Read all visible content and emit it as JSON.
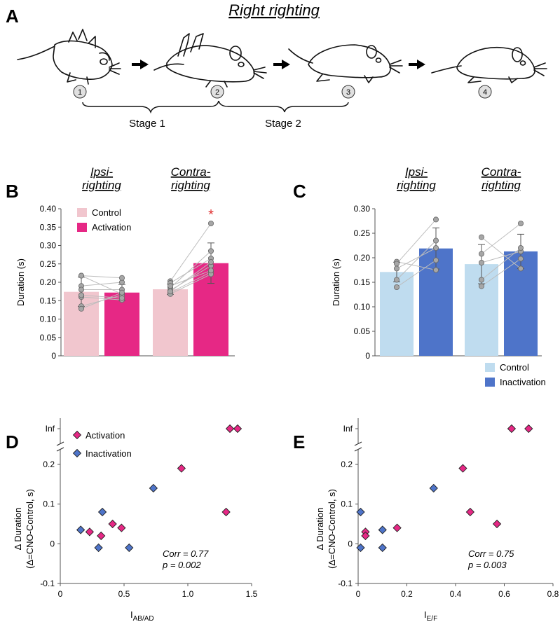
{
  "panel_labels": {
    "a": "A",
    "b": "B",
    "c": "C",
    "d": "D",
    "e": "E"
  },
  "panel_a": {
    "title": "Right righting",
    "steps": [
      "1",
      "2",
      "3",
      "4"
    ],
    "stage1": "Stage 1",
    "stage2": "Stage 2"
  },
  "colors": {
    "activation_light": "#f1c6ce",
    "activation_dark": "#e62885",
    "inactivation_light": "#bfdcef",
    "inactivation_dark": "#4e74c9",
    "dot": "#a6a6a6",
    "star": "#e03030"
  },
  "chart_data": [
    {
      "id": "B",
      "type": "bar",
      "group_headers": [
        [
          "Ipsi-",
          "righting"
        ],
        [
          "Contra-",
          "righting"
        ]
      ],
      "legend": [
        "Control",
        "Activation"
      ],
      "ylabel": "Duration (s)",
      "ylim": [
        0,
        0.4
      ],
      "yticks": [
        "0",
        "0.05",
        "0.10",
        "0.15",
        "0.20",
        "0.25",
        "0.30",
        "0.35",
        "0.40"
      ],
      "bars": [
        {
          "group": 0,
          "condition": "Control",
          "value": 0.174,
          "err": 0.04
        },
        {
          "group": 0,
          "condition": "Activation",
          "value": 0.172,
          "err": 0.022
        },
        {
          "group": 1,
          "condition": "Control",
          "value": 0.181,
          "err": 0.014
        },
        {
          "group": 1,
          "condition": "Activation",
          "value": 0.252,
          "err": 0.055
        }
      ],
      "pairs": [
        [
          [
            0.218,
            0.168
          ],
          [
            0.19,
            0.2
          ],
          [
            0.18,
            0.18
          ],
          [
            0.16,
            0.152
          ],
          [
            0.135,
            0.165
          ],
          [
            0.128,
            0.172
          ],
          [
            0.218,
            0.212
          ],
          [
            0.165,
            0.157
          ]
        ],
        [
          [
            0.203,
            0.36
          ],
          [
            0.198,
            0.265
          ],
          [
            0.185,
            0.285
          ],
          [
            0.178,
            0.245
          ],
          [
            0.172,
            0.228
          ],
          [
            0.168,
            0.222
          ],
          [
            0.175,
            0.255
          ],
          [
            0.19,
            0.232
          ]
        ]
      ],
      "significance": [
        {
          "group": 1,
          "label": "*"
        }
      ]
    },
    {
      "id": "C",
      "type": "bar",
      "group_headers": [
        [
          "Ipsi-",
          "righting"
        ],
        [
          "Contra-",
          "righting"
        ]
      ],
      "legend": [
        "Control",
        "Inactivation"
      ],
      "ylabel": "Duration (s)",
      "ylim": [
        0,
        0.3
      ],
      "yticks": [
        "0",
        "0.05",
        "0.10",
        "0.15",
        "0.20",
        "0.25",
        "0.30"
      ],
      "bars": [
        {
          "group": 0,
          "condition": "Control",
          "value": 0.171,
          "err": 0.02
        },
        {
          "group": 0,
          "condition": "Inactivation",
          "value": 0.219,
          "err": 0.042
        },
        {
          "group": 1,
          "condition": "Control",
          "value": 0.187,
          "err": 0.04
        },
        {
          "group": 1,
          "condition": "Inactivation",
          "value": 0.213,
          "err": 0.035
        }
      ],
      "pairs": [
        [
          [
            0.192,
            0.175
          ],
          [
            0.188,
            0.278
          ],
          [
            0.178,
            0.22
          ],
          [
            0.155,
            0.235
          ],
          [
            0.14,
            0.195
          ]
        ],
        [
          [
            0.242,
            0.178
          ],
          [
            0.208,
            0.27
          ],
          [
            0.19,
            0.213
          ],
          [
            0.155,
            0.22
          ],
          [
            0.142,
            0.198
          ]
        ]
      ]
    },
    {
      "id": "D",
      "type": "scatter",
      "xlabel_main": "I",
      "xlabel_sub": "AB/AD",
      "ylabel": "Δ Duration",
      "ylabel2": "(Δ=CNO-Control, s)",
      "xlim": [
        0,
        1.5
      ],
      "ylim": [
        -0.1,
        0.2
      ],
      "xticks": [
        "0",
        "0.5",
        "1.0",
        "1.5"
      ],
      "yticks": [
        "-0.1",
        "0",
        "0.1",
        "0.2",
        "Inf"
      ],
      "legend": [
        "Activation",
        "Inactivation"
      ],
      "series": [
        {
          "name": "Activation",
          "x": [
            0.23,
            0.32,
            0.41,
            0.48,
            0.95,
            1.3
          ],
          "y": [
            0.03,
            0.02,
            0.05,
            0.04,
            0.19,
            0.08
          ]
        },
        {
          "name": "Inactivation",
          "x": [
            0.16,
            0.3,
            0.33,
            0.54,
            0.73
          ],
          "y": [
            0.035,
            -0.01,
            0.08,
            -0.01,
            0.14
          ]
        }
      ],
      "inf_points": [
        {
          "name": "Activation",
          "x": [
            1.33,
            1.39
          ]
        }
      ],
      "annotation": [
        "Corr = 0.77",
        "p = 0.002"
      ]
    },
    {
      "id": "E",
      "type": "scatter",
      "xlabel_main": "I",
      "xlabel_sub": "E/F",
      "ylabel": "Δ Duration",
      "ylabel2": "(Δ=CNO-Control, s)",
      "xlim": [
        0,
        0.8
      ],
      "ylim": [
        -0.1,
        0.2
      ],
      "xticks": [
        "0",
        "0.2",
        "0.4",
        "0.6",
        "0.8"
      ],
      "yticks": [
        "-0.1",
        "0",
        "0.1",
        "0.2",
        "Inf"
      ],
      "series": [
        {
          "name": "Activation",
          "x": [
            0.03,
            0.03,
            0.16,
            0.43,
            0.46,
            0.57
          ],
          "y": [
            0.03,
            0.02,
            0.04,
            0.19,
            0.08,
            0.05
          ]
        },
        {
          "name": "Inactivation",
          "x": [
            0.01,
            0.01,
            0.1,
            0.1,
            0.31
          ],
          "y": [
            0.08,
            -0.01,
            0.035,
            -0.01,
            0.14
          ]
        }
      ],
      "inf_points": [
        {
          "name": "Activation",
          "x": [
            0.63,
            0.7
          ]
        }
      ],
      "annotation": [
        "Corr = 0.75",
        "p = 0.003"
      ]
    }
  ]
}
